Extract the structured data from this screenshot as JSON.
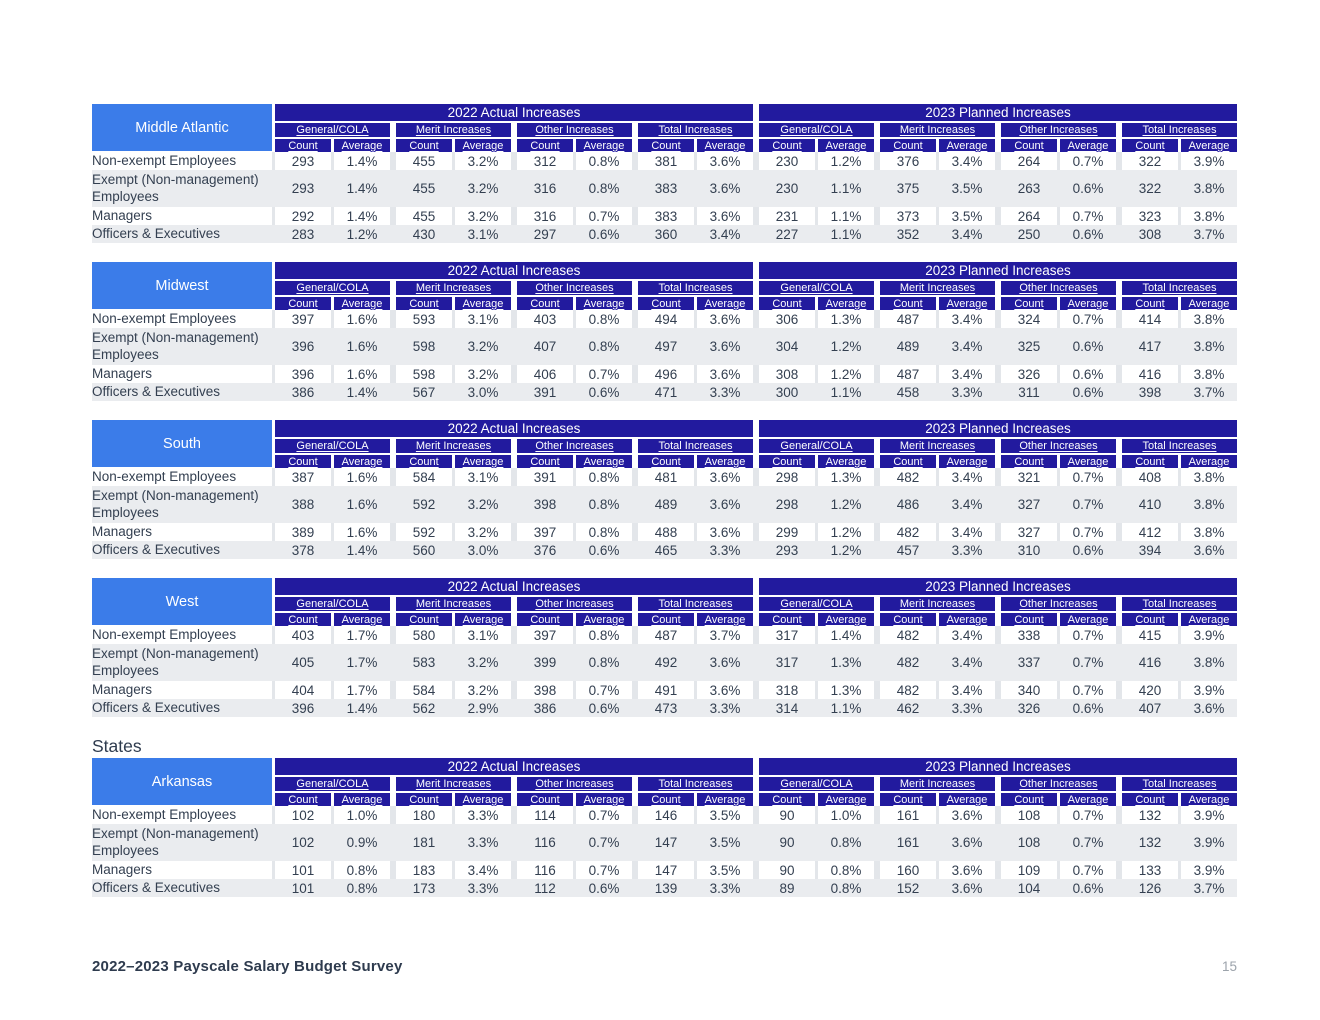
{
  "table_layout": {
    "year_headers": [
      "2022 Actual Increases",
      "2023 Planned Increases"
    ],
    "group_headers": [
      "General/COLA",
      "Merit Increases",
      "Other Increases",
      "Total Increases"
    ],
    "sub_headers": [
      "Count",
      "Average"
    ],
    "row_labels": [
      "Non-exempt Employees",
      "Exempt (Non-management) Employees",
      "Managers",
      "Officers & Executives"
    ]
  },
  "tables": [
    {
      "region": "Middle Atlantic",
      "rows": [
        [
          "293",
          "1.4%",
          "455",
          "3.2%",
          "312",
          "0.8%",
          "381",
          "3.6%",
          "230",
          "1.2%",
          "376",
          "3.4%",
          "264",
          "0.7%",
          "322",
          "3.9%"
        ],
        [
          "293",
          "1.4%",
          "455",
          "3.2%",
          "316",
          "0.8%",
          "383",
          "3.6%",
          "230",
          "1.1%",
          "375",
          "3.5%",
          "263",
          "0.6%",
          "322",
          "3.8%"
        ],
        [
          "292",
          "1.4%",
          "455",
          "3.2%",
          "316",
          "0.7%",
          "383",
          "3.6%",
          "231",
          "1.1%",
          "373",
          "3.5%",
          "264",
          "0.7%",
          "323",
          "3.8%"
        ],
        [
          "283",
          "1.2%",
          "430",
          "3.1%",
          "297",
          "0.6%",
          "360",
          "3.4%",
          "227",
          "1.1%",
          "352",
          "3.4%",
          "250",
          "0.6%",
          "308",
          "3.7%"
        ]
      ]
    },
    {
      "region": "Midwest",
      "rows": [
        [
          "397",
          "1.6%",
          "593",
          "3.1%",
          "403",
          "0.8%",
          "494",
          "3.6%",
          "306",
          "1.3%",
          "487",
          "3.4%",
          "324",
          "0.7%",
          "414",
          "3.8%"
        ],
        [
          "396",
          "1.6%",
          "598",
          "3.2%",
          "407",
          "0.8%",
          "497",
          "3.6%",
          "304",
          "1.2%",
          "489",
          "3.4%",
          "325",
          "0.6%",
          "417",
          "3.8%"
        ],
        [
          "396",
          "1.6%",
          "598",
          "3.2%",
          "406",
          "0.7%",
          "496",
          "3.6%",
          "308",
          "1.2%",
          "487",
          "3.4%",
          "326",
          "0.6%",
          "416",
          "3.8%"
        ],
        [
          "386",
          "1.4%",
          "567",
          "3.0%",
          "391",
          "0.6%",
          "471",
          "3.3%",
          "300",
          "1.1%",
          "458",
          "3.3%",
          "311",
          "0.6%",
          "398",
          "3.7%"
        ]
      ]
    },
    {
      "region": "South",
      "rows": [
        [
          "387",
          "1.6%",
          "584",
          "3.1%",
          "391",
          "0.8%",
          "481",
          "3.6%",
          "298",
          "1.3%",
          "482",
          "3.4%",
          "321",
          "0.7%",
          "408",
          "3.8%"
        ],
        [
          "388",
          "1.6%",
          "592",
          "3.2%",
          "398",
          "0.8%",
          "489",
          "3.6%",
          "298",
          "1.2%",
          "486",
          "3.4%",
          "327",
          "0.7%",
          "410",
          "3.8%"
        ],
        [
          "389",
          "1.6%",
          "592",
          "3.2%",
          "397",
          "0.8%",
          "488",
          "3.6%",
          "299",
          "1.2%",
          "482",
          "3.4%",
          "327",
          "0.7%",
          "412",
          "3.8%"
        ],
        [
          "378",
          "1.4%",
          "560",
          "3.0%",
          "376",
          "0.6%",
          "465",
          "3.3%",
          "293",
          "1.2%",
          "457",
          "3.3%",
          "310",
          "0.6%",
          "394",
          "3.6%"
        ]
      ]
    },
    {
      "region": "West",
      "rows": [
        [
          "403",
          "1.7%",
          "580",
          "3.1%",
          "397",
          "0.8%",
          "487",
          "3.7%",
          "317",
          "1.4%",
          "482",
          "3.4%",
          "338",
          "0.7%",
          "415",
          "3.9%"
        ],
        [
          "405",
          "1.7%",
          "583",
          "3.2%",
          "399",
          "0.8%",
          "492",
          "3.6%",
          "317",
          "1.3%",
          "482",
          "3.4%",
          "337",
          "0.7%",
          "416",
          "3.8%"
        ],
        [
          "404",
          "1.7%",
          "584",
          "3.2%",
          "398",
          "0.7%",
          "491",
          "3.6%",
          "318",
          "1.3%",
          "482",
          "3.4%",
          "340",
          "0.7%",
          "420",
          "3.9%"
        ],
        [
          "396",
          "1.4%",
          "562",
          "2.9%",
          "386",
          "0.6%",
          "473",
          "3.3%",
          "314",
          "1.1%",
          "462",
          "3.3%",
          "326",
          "0.6%",
          "407",
          "3.6%"
        ]
      ]
    },
    {
      "region": "Arkansas",
      "section_heading": "States",
      "rows": [
        [
          "102",
          "1.0%",
          "180",
          "3.3%",
          "114",
          "0.7%",
          "146",
          "3.5%",
          "90",
          "1.0%",
          "161",
          "3.6%",
          "108",
          "0.7%",
          "132",
          "3.9%"
        ],
        [
          "102",
          "0.9%",
          "181",
          "3.3%",
          "116",
          "0.7%",
          "147",
          "3.5%",
          "90",
          "0.8%",
          "161",
          "3.6%",
          "108",
          "0.7%",
          "132",
          "3.9%"
        ],
        [
          "101",
          "0.8%",
          "183",
          "3.4%",
          "116",
          "0.7%",
          "147",
          "3.5%",
          "90",
          "0.8%",
          "160",
          "3.6%",
          "109",
          "0.7%",
          "133",
          "3.9%"
        ],
        [
          "101",
          "0.8%",
          "173",
          "3.3%",
          "112",
          "0.6%",
          "139",
          "3.3%",
          "89",
          "0.8%",
          "152",
          "3.6%",
          "104",
          "0.6%",
          "126",
          "3.7%"
        ]
      ]
    }
  ],
  "footer": {
    "title": "2022–2023 Payscale Salary Budget Survey",
    "page_number": "15"
  },
  "colors": {
    "header_indigo": "#221A9E",
    "region_blue": "#3B7CE9",
    "row_stripe": "#EAECEF",
    "cell_gutter": "#E3E6EA",
    "data_text": "#333F50",
    "footer_text": "#2E3B4E",
    "page_number_text": "#9CA3AB"
  }
}
